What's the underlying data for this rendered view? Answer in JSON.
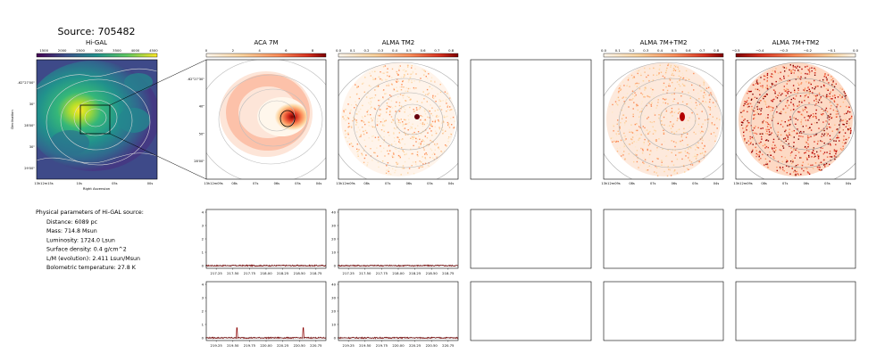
{
  "suptitle": "Source: 705482",
  "panels": {
    "higal": {
      "title": "Hi-GAL",
      "xlabel": "Right Ascension",
      "ylabel": "Declination",
      "colorbar_ticks": [
        "1500",
        "2000",
        "2500",
        "3000",
        "3500",
        "4000",
        "4500"
      ],
      "xticks": [
        "13h12m15s",
        "10s",
        "05s",
        "00s"
      ],
      "yticks": [
        "-62°27'00\"",
        "30\"",
        "28'00\"",
        "30\"",
        "29'00\""
      ]
    },
    "aca7m": {
      "title": "ACA 7M",
      "colorbar_ticks": [
        "0",
        "2",
        "4",
        "6",
        "8"
      ],
      "xticks": [
        "13h12m09s",
        "08s",
        "07s",
        "06s",
        "05s",
        "04s"
      ],
      "yticks": [
        "-62°27'30\"",
        "40\"",
        "50\"",
        "28'00\""
      ]
    },
    "almatm2": {
      "title": "ALMA TM2",
      "colorbar_ticks": [
        "0.0",
        "0.1",
        "0.2",
        "0.3",
        "0.4",
        "0.5",
        "0.6",
        "0.7",
        "0.8"
      ],
      "xticks": [
        "13h12m09s",
        "08s",
        "07s",
        "06s",
        "05s",
        "04s"
      ]
    },
    "alma7mtm2_a": {
      "title": "ALMA 7M+TM2",
      "colorbar_ticks": [
        "0.0",
        "0.1",
        "0.2",
        "0.3",
        "0.4",
        "0.5",
        "0.6",
        "0.7",
        "0.8"
      ],
      "xticks": [
        "13h12m09s",
        "08s",
        "07s",
        "06s",
        "05s",
        "04s"
      ]
    },
    "alma7mtm2_b": {
      "title": "ALMA 7M+TM2",
      "colorbar_ticks": [
        "−0.5",
        "−0.4",
        "−0.3",
        "−0.2",
        "−0.1",
        "0.0"
      ],
      "xticks": [
        "13h12m09s",
        "08s",
        "07s",
        "06s",
        "05s",
        "04s"
      ]
    }
  },
  "params": {
    "heading": "Physical parameters of Hi-GAL source:",
    "lines": [
      "Distance: 6089 pc",
      "Mass: 714.8 Msun",
      "Luminosity: 1724.0 Lsun",
      "Surface density: 0.4 g/cm^2",
      "L/M (evolution): 2.411 Lsun/Msun",
      "Bolometric temperature: 27.8 K"
    ]
  },
  "chart_data": [
    {
      "type": "line",
      "panel": "spectrum-row1-aca",
      "x": [
        217.1,
        218.9
      ],
      "xticks": [
        "217.25",
        "217.50",
        "217.75",
        "218.00",
        "218.25",
        "218.50",
        "218.75"
      ],
      "yticks": [
        "0",
        "1",
        "2",
        "3",
        "4"
      ],
      "ylim": [
        -0.2,
        4.2
      ],
      "spikes": []
    },
    {
      "type": "line",
      "panel": "spectrum-row1-alma",
      "x": [
        217.1,
        218.9
      ],
      "xticks": [
        "217.25",
        "217.50",
        "217.75",
        "218.00",
        "218.25",
        "218.50",
        "218.75"
      ],
      "yticks": [
        "0",
        "10",
        "20",
        "30",
        "40"
      ],
      "ylim": [
        -2,
        42
      ],
      "spikes": []
    },
    {
      "type": "line",
      "panel": "spectrum-row2-aca",
      "x": [
        219.1,
        220.9
      ],
      "xticks": [
        "219.25",
        "219.50",
        "219.75",
        "220.00",
        "220.25",
        "220.50",
        "220.75"
      ],
      "yticks": [
        "0",
        "1",
        "2",
        "3",
        "4"
      ],
      "ylim": [
        -0.2,
        4.2
      ],
      "spikes": [
        {
          "x": 219.56,
          "y": 0.75
        },
        {
          "x": 220.56,
          "y": 0.75
        }
      ]
    },
    {
      "type": "line",
      "panel": "spectrum-row2-alma",
      "x": [
        219.1,
        220.9
      ],
      "xticks": [
        "219.25",
        "219.50",
        "219.75",
        "220.00",
        "220.25",
        "220.50",
        "220.75"
      ],
      "yticks": [
        "0",
        "10",
        "20",
        "30",
        "40"
      ],
      "ylim": [
        -2,
        42
      ],
      "spikes": []
    }
  ],
  "colors": {
    "hot_dark": "#67000d",
    "hot_mid": "#e34a33",
    "hot_light": "#fee0d2",
    "viridis_yellow": "#fde725",
    "contour": "#aaaaaa",
    "spectrum": "#8b0000"
  }
}
